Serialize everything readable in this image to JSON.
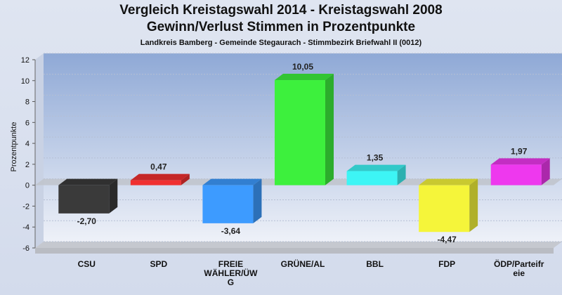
{
  "header": {
    "title_line1": "Vergleich Kreistagswahl 2014 - Kreistagswahl 2008",
    "title_line2": "Gewinn/Verlust Stimmen in Prozentpunkte",
    "subtitle": "Landkreis Bamberg - Gemeinde Stegaurach - Stimmbezirk Briefwahl II (0012)"
  },
  "chart_data": {
    "type": "bar",
    "title": "Vergleich Kreistagswahl 2014 - Kreistagswahl 2008 / Gewinn/Verlust Stimmen in Prozentpunkte",
    "subtitle": "Landkreis Bamberg - Gemeinde Stegaurach - Stimmbezirk Briefwahl II (0012)",
    "ylabel": "Prozentpunkte",
    "xlabel": "",
    "ylim": [
      -6,
      12
    ],
    "yticks": [
      -6,
      -4,
      -2,
      0,
      2,
      4,
      6,
      8,
      10,
      12
    ],
    "grid": "on",
    "categories": [
      [
        "CSU"
      ],
      [
        "SPD"
      ],
      [
        "FREIE",
        "WÄHLER/ÜW",
        "G"
      ],
      [
        "GRÜNE/AL"
      ],
      [
        "BBL"
      ],
      [
        "FDP"
      ],
      [
        "ÖDP/Parteifr",
        "eie"
      ]
    ],
    "values": [
      -2.7,
      0.47,
      -3.64,
      10.05,
      1.35,
      -4.47,
      1.97
    ],
    "value_labels": [
      "-2,70",
      "0,47",
      "-3,64",
      "10,05",
      "1,35",
      "-4,47",
      "1,97"
    ],
    "colors": [
      "#3a3a3a",
      "#f03030",
      "#3d9bff",
      "#3df03d",
      "#3df5f5",
      "#f5f53a",
      "#ee38ee"
    ]
  }
}
